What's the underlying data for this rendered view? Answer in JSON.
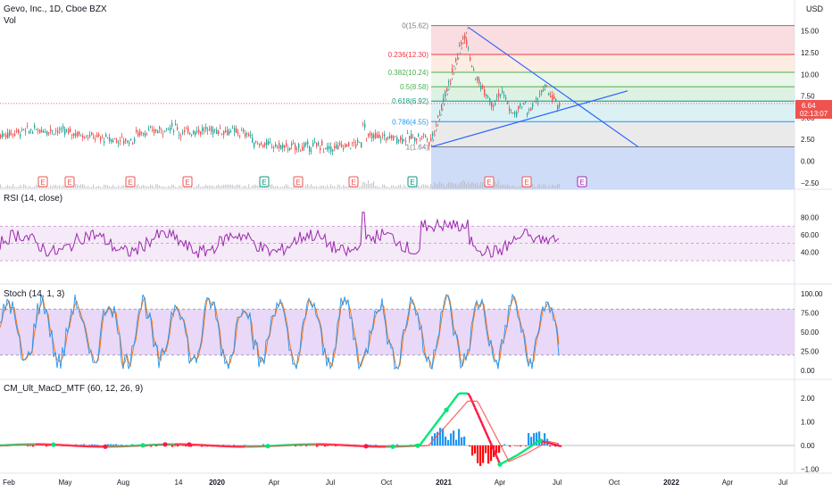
{
  "header": {
    "title": "Gevo, Inc., 1D, Cboe BZX",
    "volume_label": "Vol",
    "currency": "USD"
  },
  "price_pane": {
    "y_ticks": [
      "15.00",
      "12.50",
      "10.00",
      "7.50",
      "5.00",
      "2.50",
      "0.00",
      "−2.50"
    ],
    "y_tick_values": [
      15,
      12.5,
      10,
      7.5,
      5,
      2.5,
      0,
      -2.5
    ],
    "current_price": "6.64",
    "countdown": "02:13:07",
    "earnings_marker": "E",
    "fib_levels": [
      {
        "ratio": "0",
        "price": "(15.62)",
        "value": 15.62,
        "color": "#787b86"
      },
      {
        "ratio": "0.236",
        "price": "(12.30)",
        "value": 12.3,
        "color": "#f23645"
      },
      {
        "ratio": "0.382",
        "price": "(10.24)",
        "value": 10.24,
        "color": "#4caf50"
      },
      {
        "ratio": "0.5",
        "price": "(8.58)",
        "value": 8.58,
        "color": "#4caf50"
      },
      {
        "ratio": "0.618",
        "price": "(6.92)",
        "value": 6.92,
        "color": "#089981"
      },
      {
        "ratio": "0.786",
        "price": "(4.55)",
        "value": 4.55,
        "color": "#2196f3"
      },
      {
        "ratio": "1",
        "price": "(1.64)",
        "value": 1.64,
        "color": "#787b86"
      }
    ]
  },
  "rsi_pane": {
    "title": "RSI (14, close)",
    "y_ticks": [
      "80.00",
      "60.00",
      "40.00"
    ],
    "y_tick_values": [
      80,
      60,
      40
    ]
  },
  "stoch_pane": {
    "title": "Stoch (14, 1, 3)",
    "y_ticks": [
      "100.00",
      "75.00",
      "50.00",
      "25.00",
      "0.00"
    ],
    "y_tick_values": [
      100,
      75,
      50,
      25,
      0
    ]
  },
  "macd_pane": {
    "title": "CM_Ult_MacD_MTF (60, 12, 26, 9)",
    "y_ticks": [
      "2.00",
      "1.00",
      "0.00",
      "−1.00"
    ],
    "y_tick_values": [
      2,
      1,
      0,
      -1
    ]
  },
  "time_axis": {
    "labels": [
      "Feb",
      "May",
      "Aug",
      "14",
      "2020",
      "Apr",
      "Jul",
      "Oct",
      "2021",
      "Apr",
      "Jul",
      "Oct",
      "2022",
      "Apr",
      "Jul"
    ]
  },
  "colors": {
    "candle_up": "#26a69a",
    "candle_down": "#ef5350",
    "rsi_line": "#9c27b0",
    "stoch_k": "#2196f3",
    "stoch_d": "#ff6d00",
    "trend_line": "#2962ff",
    "price_badge": "#ef5350"
  }
}
